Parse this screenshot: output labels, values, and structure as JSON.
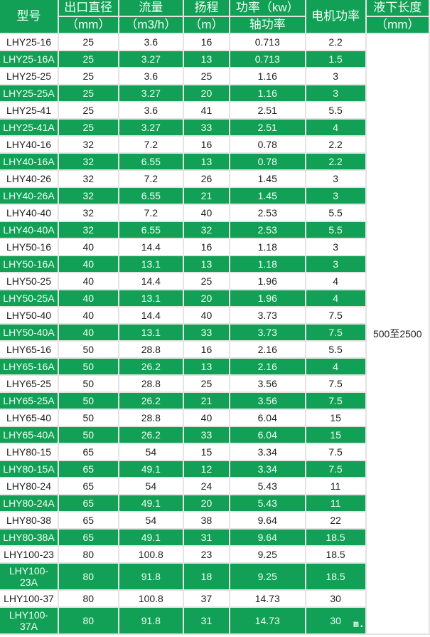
{
  "header": {
    "model": "型号",
    "outlet": "出口直径",
    "outlet_unit": "（mm）",
    "flow": "流量",
    "flow_unit": "（m3/h）",
    "head": "扬程",
    "head_unit": "（m）",
    "power": "功率（kw）",
    "shaft_power": "轴功率",
    "motor": "电机功率",
    "length": "液下长度",
    "length_unit": "（mm）"
  },
  "length_value": "500至2500",
  "watermark": "m.",
  "colors": {
    "green": "#11a055",
    "white": "#ffffff"
  },
  "rows": [
    [
      "LHY25-16",
      "25",
      "3.6",
      "16",
      "0.713",
      "2.2"
    ],
    [
      "LHY25-16A",
      "25",
      "3.27",
      "13",
      "0.713",
      "1.5"
    ],
    [
      "LHY25-25",
      "25",
      "3.6",
      "25",
      "1.16",
      "3"
    ],
    [
      "LHY25-25A",
      "25",
      "3.27",
      "20",
      "1.16",
      "3"
    ],
    [
      "LHY25-41",
      "25",
      "3.6",
      "41",
      "2.51",
      "5.5"
    ],
    [
      "LHY25-41A",
      "25",
      "3.27",
      "33",
      "2.51",
      "4"
    ],
    [
      "LHY40-16",
      "32",
      "7.2",
      "16",
      "0.78",
      "2.2"
    ],
    [
      "LHY40-16A",
      "32",
      "6.55",
      "13",
      "0.78",
      "2.2"
    ],
    [
      "LHY40-26",
      "32",
      "7.2",
      "26",
      "1.45",
      "3"
    ],
    [
      "LHY40-26A",
      "32",
      "6.55",
      "21",
      "1.45",
      "3"
    ],
    [
      "LHY40-40",
      "32",
      "7.2",
      "40",
      "2.53",
      "5.5"
    ],
    [
      "LHY40-40A",
      "32",
      "6.55",
      "32",
      "2.53",
      "5.5"
    ],
    [
      "LHY50-16",
      "40",
      "14.4",
      "16",
      "1.18",
      "3"
    ],
    [
      "LHY50-16A",
      "40",
      "13.1",
      "13",
      "1.18",
      "3"
    ],
    [
      "LHY50-25",
      "40",
      "14.4",
      "25",
      "1.96",
      "4"
    ],
    [
      "LHY50-25A",
      "40",
      "13.1",
      "20",
      "1.96",
      "4"
    ],
    [
      "LHY50-40",
      "40",
      "14.4",
      "40",
      "3.73",
      "7.5"
    ],
    [
      "LHY50-40A",
      "40",
      "13.1",
      "33",
      "3.73",
      "7.5"
    ],
    [
      "LHY65-16",
      "50",
      "28.8",
      "16",
      "2.16",
      "5.5"
    ],
    [
      "LHY65-16A",
      "50",
      "26.2",
      "13",
      "2.16",
      "4"
    ],
    [
      "LHY65-25",
      "50",
      "28.8",
      "25",
      "3.56",
      "7.5"
    ],
    [
      "LHY65-25A",
      "50",
      "26.2",
      "21",
      "3.56",
      "7.5"
    ],
    [
      "LHY65-40",
      "50",
      "28.8",
      "40",
      "6.04",
      "15"
    ],
    [
      "LHY65-40A",
      "50",
      "26.2",
      "33",
      "6.04",
      "15"
    ],
    [
      "LHY80-15",
      "65",
      "54",
      "15",
      "3.34",
      "7.5"
    ],
    [
      "LHY80-15A",
      "65",
      "49.1",
      "12",
      "3.34",
      "7.5"
    ],
    [
      "LHY80-24",
      "65",
      "54",
      "24",
      "5.43",
      "11"
    ],
    [
      "LHY80-24A",
      "65",
      "49.1",
      "20",
      "5.43",
      "11"
    ],
    [
      "LHY80-38",
      "65",
      "54",
      "38",
      "9.64",
      "22"
    ],
    [
      "LHY80-38A",
      "65",
      "49.1",
      "31",
      "9.64",
      "18.5"
    ],
    [
      "LHY100-23",
      "80",
      "100.8",
      "23",
      "9.25",
      "18.5"
    ],
    [
      "LHY100-23A",
      "80",
      "91.8",
      "18",
      "9.25",
      "18.5"
    ],
    [
      "LHY100-37",
      "80",
      "100.8",
      "37",
      "14.73",
      "30"
    ],
    [
      "LHY100-37A",
      "80",
      "91.8",
      "31",
      "14.73",
      "30"
    ]
  ]
}
